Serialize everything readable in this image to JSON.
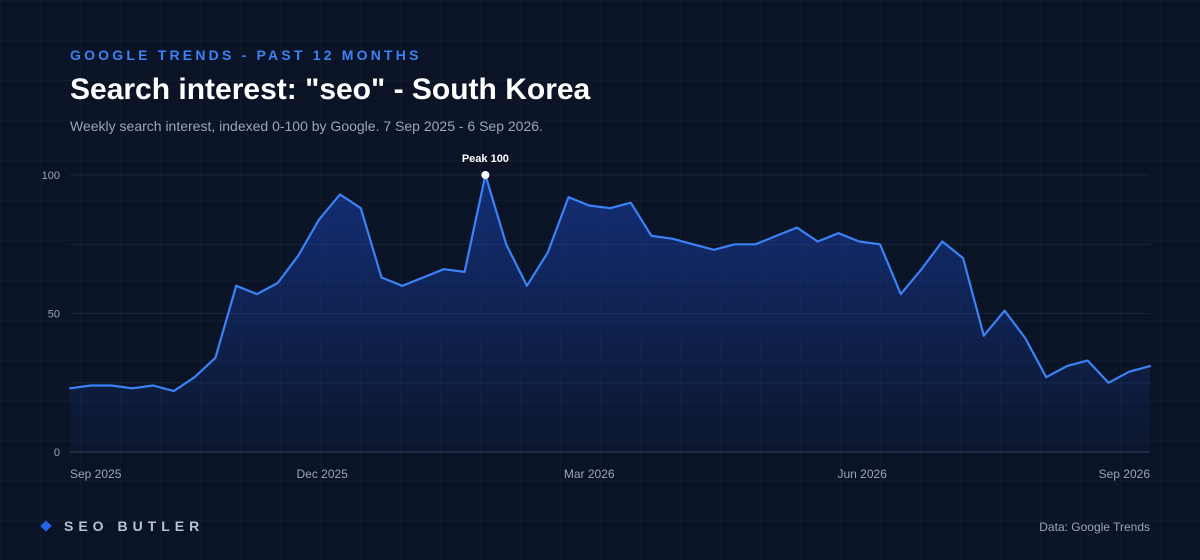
{
  "header": {
    "kicker": "GOOGLE TRENDS - PAST 12 MONTHS",
    "title": "Search interest: \"seo\" - South Korea",
    "subtitle": "Weekly search interest, indexed 0-100 by Google. 7 Sep 2025 - 6 Sep 2026."
  },
  "footer": {
    "brand": "SEO BUTLER",
    "brand_icon": "diamond-icon",
    "source": "Data: Google Trends"
  },
  "colors": {
    "background": "#0b1426",
    "line": "#3b82f6",
    "accent": "#2563eb"
  },
  "chart_data": {
    "type": "area",
    "x_start": "2025-09-07",
    "x_end": "2026-09-06",
    "x_ticks": [
      {
        "date": "2025-09-07",
        "label": "Sep 2025"
      },
      {
        "date": "2025-12-01",
        "label": "Dec 2025"
      },
      {
        "date": "2026-03-01",
        "label": "Mar 2026"
      },
      {
        "date": "2026-06-01",
        "label": "Jun 2026"
      },
      {
        "date": "2026-09-06",
        "label": "Sep 2026"
      }
    ],
    "y_ticks": [
      0,
      50,
      100
    ],
    "ylim": [
      0,
      100
    ],
    "grid": true,
    "series": [
      {
        "values": [
          23,
          24,
          24,
          23,
          24,
          22,
          27,
          34,
          60,
          57,
          61,
          71,
          84,
          93,
          88,
          63,
          60,
          63,
          66,
          65,
          100,
          75,
          60,
          72,
          92,
          89,
          88,
          90,
          78,
          77,
          75,
          73,
          75,
          75,
          78,
          81,
          76,
          79,
          76,
          75,
          57,
          66,
          76,
          70,
          42,
          51,
          41,
          27,
          31,
          33,
          25,
          29,
          31
        ]
      }
    ],
    "annotation": {
      "label": "Peak 100",
      "date": "2026-01-25",
      "value": 100
    }
  }
}
